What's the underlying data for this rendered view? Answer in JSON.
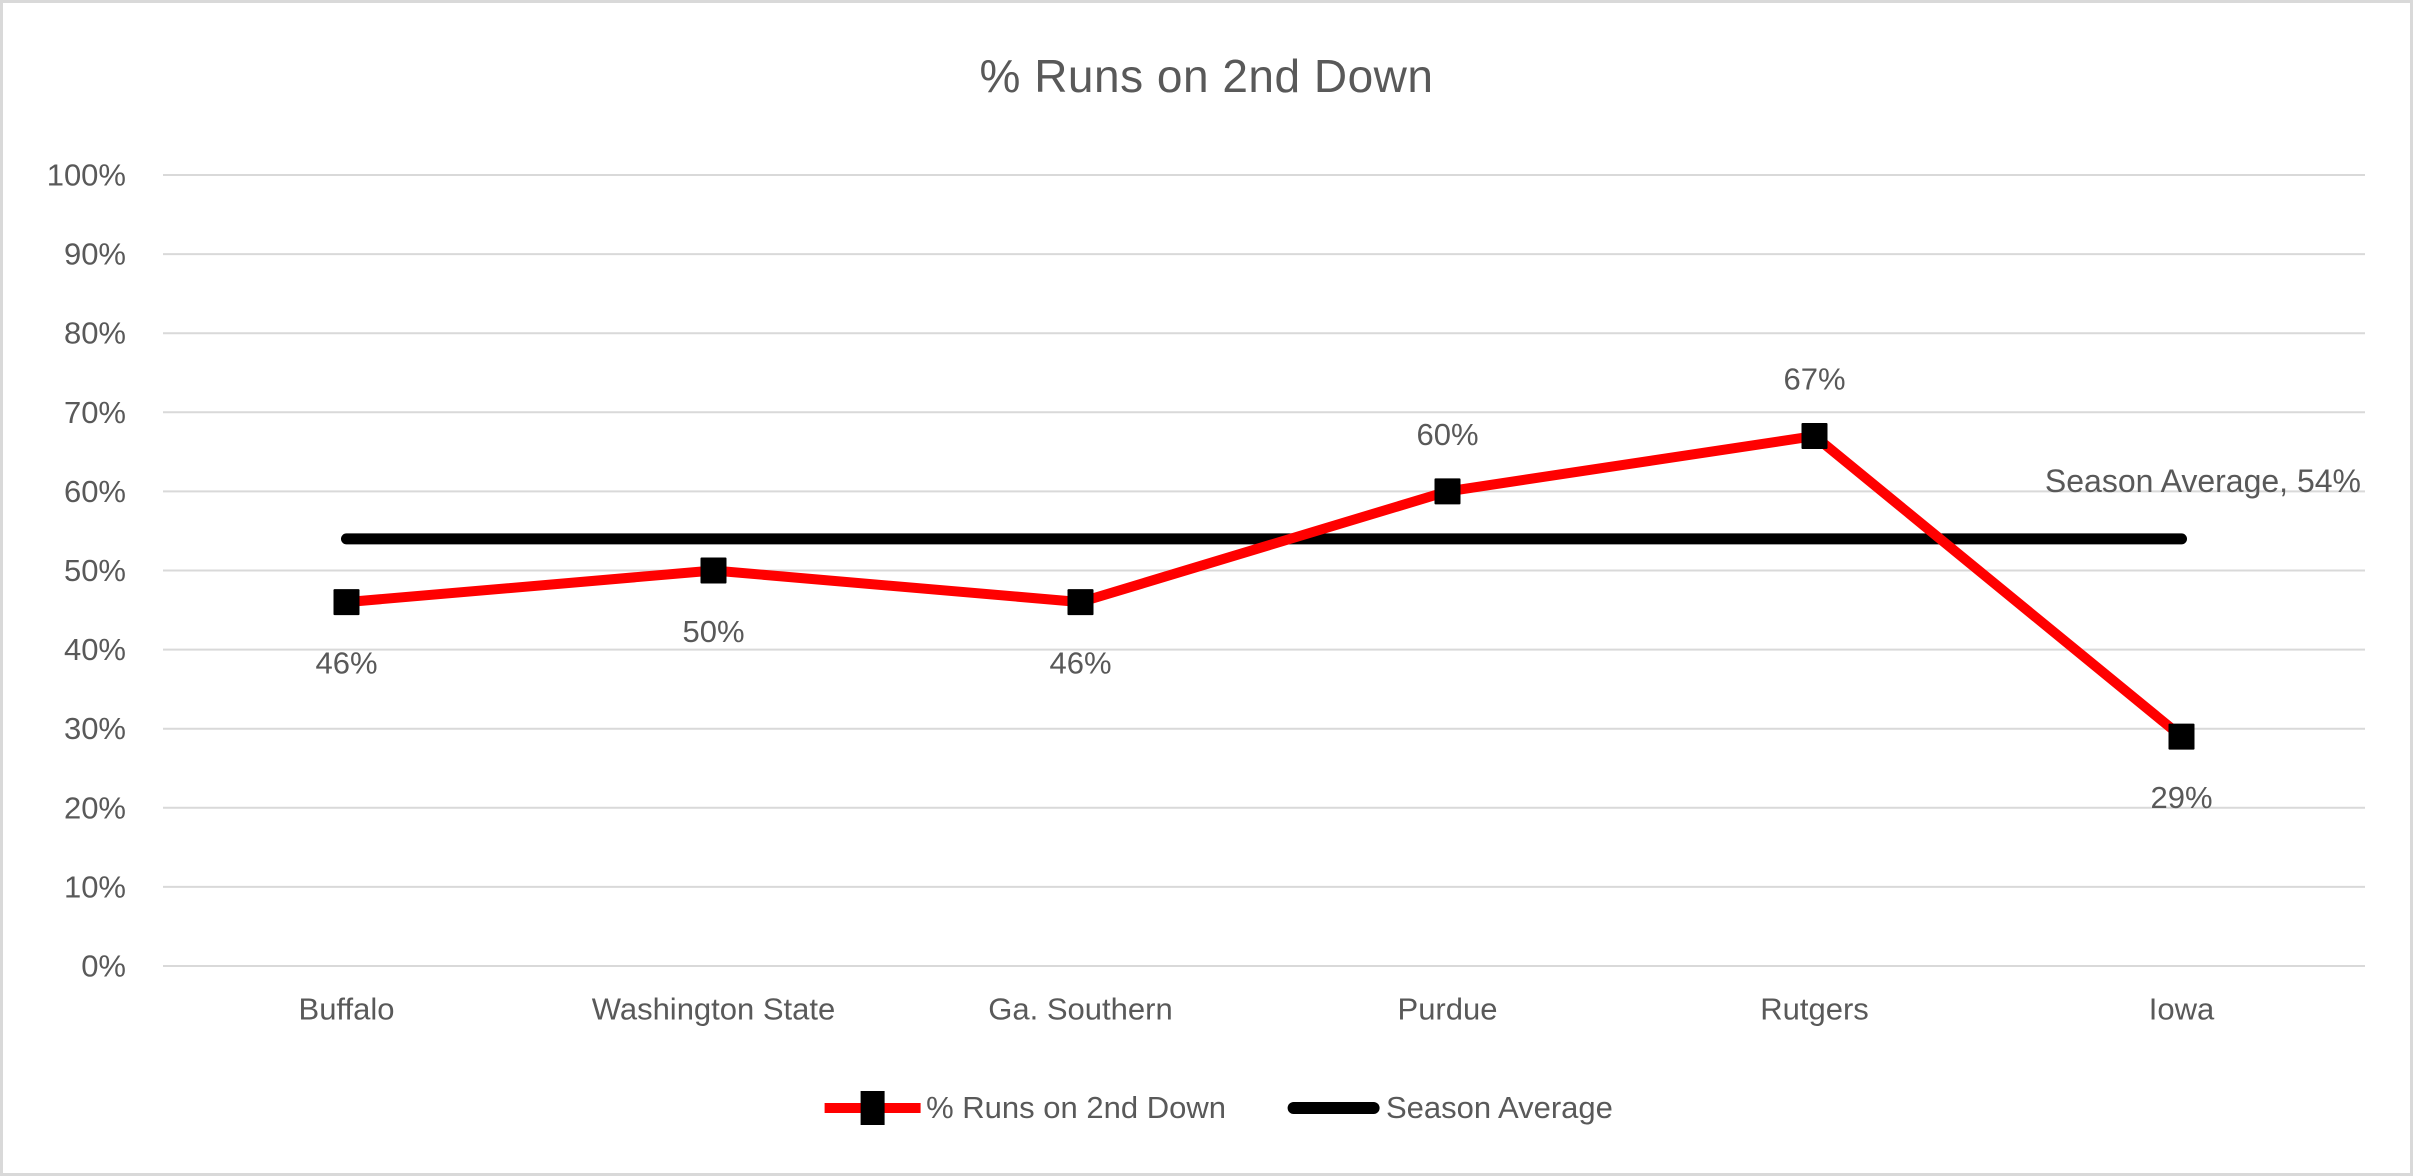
{
  "chart_data": {
    "type": "line",
    "title": "% Runs on 2nd Down",
    "categories": [
      "Buffalo",
      "Washington State",
      "Ga. Southern",
      "Purdue",
      "Rutgers",
      "Iowa"
    ],
    "series": [
      {
        "name": "% Runs on 2nd Down",
        "values": [
          46,
          50,
          46,
          60,
          67,
          29
        ],
        "data_labels": [
          "46%",
          "50%",
          "46%",
          "60%",
          "67%",
          "29%"
        ],
        "label_side": [
          "below",
          "below",
          "below",
          "above",
          "above",
          "below"
        ],
        "color": "#FF0000",
        "marker": "square",
        "marker_color": "#000000"
      },
      {
        "name": "Season Average",
        "value": 54,
        "color": "#000000",
        "annotation": "Season Average, 54%"
      }
    ],
    "ylim": [
      0,
      100
    ],
    "yticks": [
      {
        "v": 0,
        "label": "0%"
      },
      {
        "v": 10,
        "label": "10%"
      },
      {
        "v": 20,
        "label": "20%"
      },
      {
        "v": 30,
        "label": "30%"
      },
      {
        "v": 40,
        "label": "40%"
      },
      {
        "v": 50,
        "label": "50%"
      },
      {
        "v": 60,
        "label": "60%"
      },
      {
        "v": 70,
        "label": "70%"
      },
      {
        "v": 80,
        "label": "80%"
      },
      {
        "v": 90,
        "label": "90%"
      },
      {
        "v": 100,
        "label": "100%"
      }
    ],
    "grid": true,
    "legend_position": "bottom",
    "colors": {
      "gridline": "#D9D9D9",
      "frame_border": "#D9D9D9",
      "text": "#595959",
      "background": "#FFFFFF"
    }
  }
}
